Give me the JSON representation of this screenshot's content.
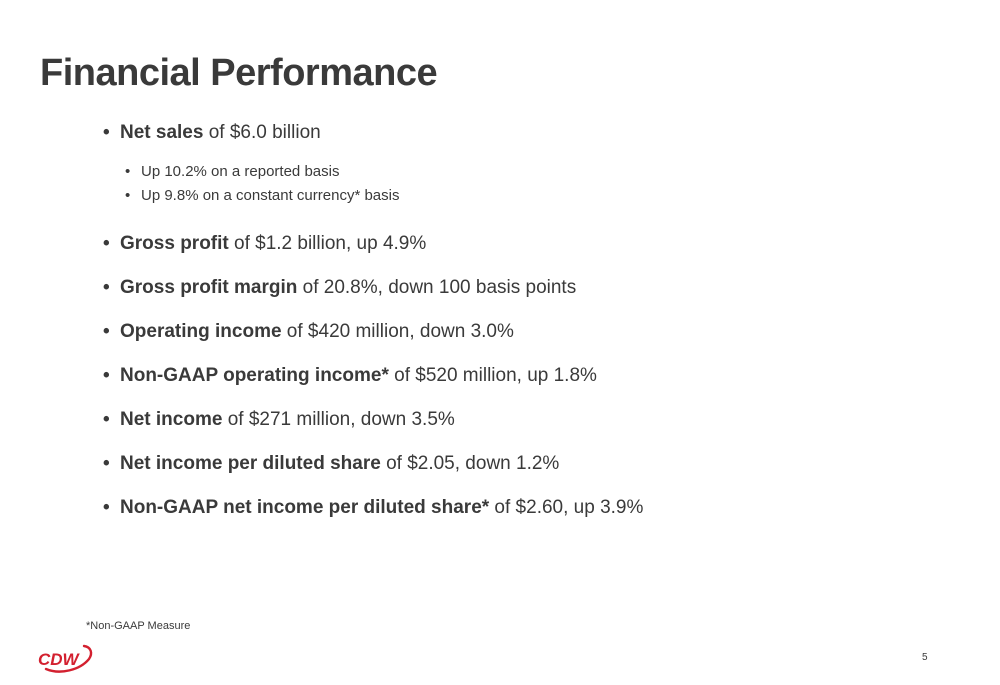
{
  "slide": {
    "title": "Financial Performance",
    "footnote": "*Non-GAAP Measure",
    "page_number": "5",
    "logo_text": "CDW",
    "brand_color": "#d3202f"
  },
  "bullets": [
    {
      "bold": "Net sales",
      "text": " of $6.0 billion",
      "subbullets": [
        "Up 10.2% on a reported basis",
        "Up 9.8% on a constant currency* basis"
      ]
    },
    {
      "bold": "Gross profit",
      "text": " of $1.2 billion, up 4.9%"
    },
    {
      "bold": "Gross profit margin",
      "text": " of 20.8%, down 100 basis points"
    },
    {
      "bold": "Operating income",
      "text": " of $420 million, down 3.0%"
    },
    {
      "bold": "Non-GAAP operating income*",
      "text": " of $520 million, up 1.8%"
    },
    {
      "bold": "Net income",
      "text": " of $271 million, down 3.5%"
    },
    {
      "bold": "Net income per diluted share",
      "text": " of $2.05, down 1.2%"
    },
    {
      "bold": "Non-GAAP net income per diluted share*",
      "text": " of $2.60, up 3.9%"
    }
  ]
}
